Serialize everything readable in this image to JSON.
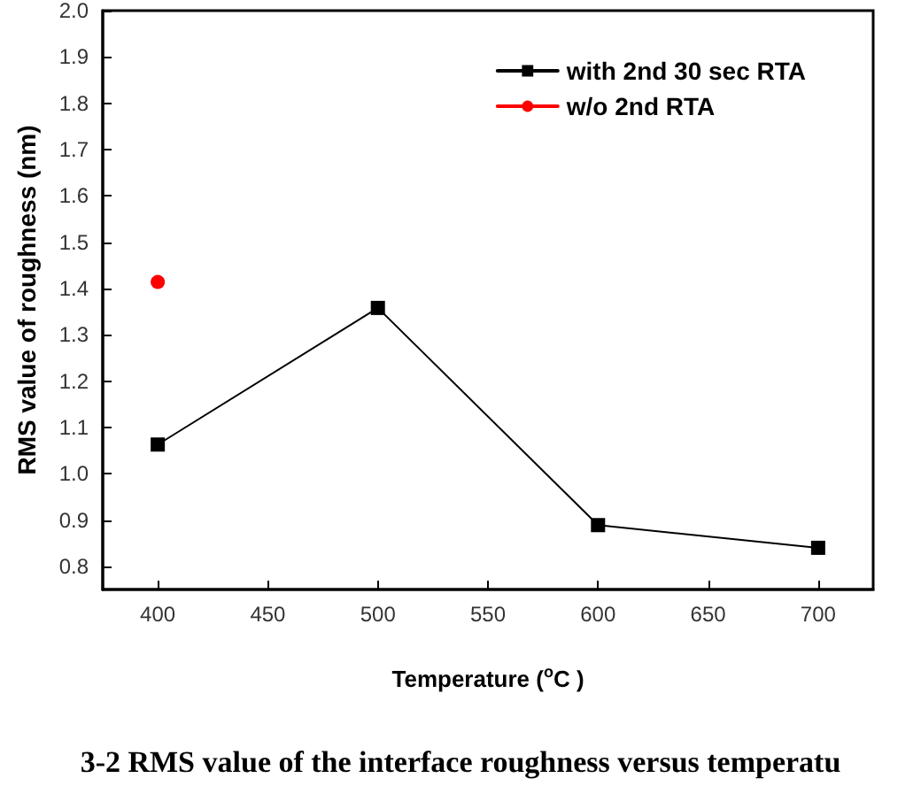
{
  "chart_data": {
    "type": "line",
    "xlabel": "Temperature ($^{o}$C )",
    "ylabel": "RMS value of roughness (nm)",
    "annotations": [
      "3-2 RMS value of the interface roughness versus temperatu"
    ],
    "xlim": [
      375,
      725
    ],
    "xticks": [
      400,
      450,
      500,
      550,
      600,
      650,
      700
    ],
    "ylim": [
      0.75,
      2.0
    ],
    "yticks": [
      0.8,
      0.9,
      {
        "value": 1,
        "label": "1.0"
      },
      1.1,
      1.2,
      1.3,
      1.4,
      1.5,
      1.6,
      1.7,
      1.8,
      1.9,
      {
        "value": 2,
        "label": "2.0"
      }
    ],
    "grid": false,
    "legend": "top right",
    "line_style": "solid",
    "series": [
      {
        "name": "with 2nd 30 sec RTA",
        "color": "#000000",
        "marker": "square",
        "x": [
          400,
          500,
          600,
          700
        ],
        "values": [
          1.063,
          1.358,
          0.889,
          0.84
        ]
      },
      {
        "name": "w/o 2nd RTA",
        "color": "#ff0000",
        "marker": "circle",
        "x": [
          400
        ],
        "values": [
          1.414
        ]
      }
    ]
  }
}
